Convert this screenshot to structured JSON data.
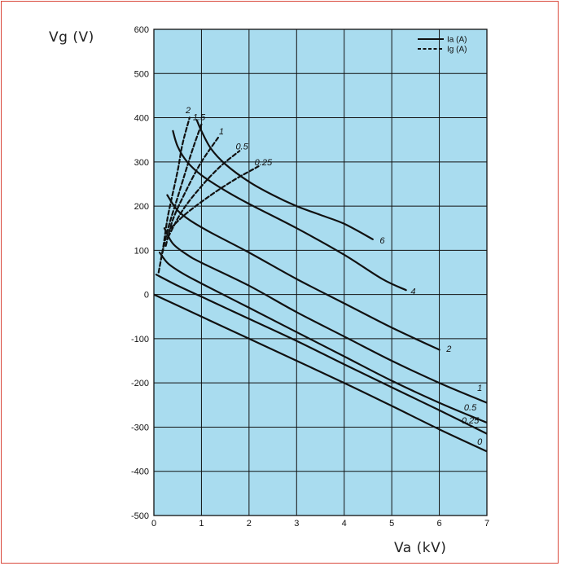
{
  "colors": {
    "frame": "#d9473a",
    "plot_background": "#a9dcef",
    "grid": "#111111",
    "curve": "#111111"
  },
  "chart_data": {
    "type": "line",
    "title": "",
    "xlabel": "Va (kV)",
    "ylabel": "Vg (V)",
    "xlim": [
      0,
      7
    ],
    "ylim": [
      -500,
      600
    ],
    "x_ticks": [
      0,
      1,
      2,
      3,
      4,
      5,
      6,
      7
    ],
    "y_ticks": [
      -500,
      -400,
      -300,
      -200,
      -100,
      0,
      100,
      200,
      300,
      400,
      500,
      600
    ],
    "grid": true,
    "legend": {
      "position": "top-right",
      "entries": [
        {
          "label": "Ia (A)",
          "style": "solid"
        },
        {
          "label": "Ig (A)",
          "style": "dashed"
        }
      ]
    },
    "series": [
      {
        "name": "Ia (A)",
        "label": "0",
        "style": "solid",
        "points": [
          [
            0,
            0
          ],
          [
            1,
            -50
          ],
          [
            2,
            -100
          ],
          [
            3,
            -150
          ],
          [
            4,
            -200
          ],
          [
            5,
            -252
          ],
          [
            6,
            -305
          ],
          [
            7,
            -355
          ]
        ]
      },
      {
        "name": "Ia (A)",
        "label": "0.25",
        "style": "solid",
        "points": [
          [
            0.05,
            45
          ],
          [
            0.5,
            20
          ],
          [
            1,
            -5
          ],
          [
            2,
            -55
          ],
          [
            3,
            -105
          ],
          [
            4,
            -158
          ],
          [
            5,
            -210
          ],
          [
            6,
            -262
          ],
          [
            7,
            -315
          ]
        ]
      },
      {
        "name": "Ia (A)",
        "label": "0.5",
        "style": "solid",
        "points": [
          [
            0.12,
            95
          ],
          [
            0.3,
            70
          ],
          [
            0.6,
            48
          ],
          [
            1,
            25
          ],
          [
            2,
            -30
          ],
          [
            3,
            -85
          ],
          [
            4,
            -140
          ],
          [
            5,
            -195
          ],
          [
            6,
            -245
          ],
          [
            7,
            -290
          ]
        ]
      },
      {
        "name": "Ia (A)",
        "label": "1",
        "style": "solid",
        "points": [
          [
            0.22,
            150
          ],
          [
            0.4,
            115
          ],
          [
            0.7,
            90
          ],
          [
            1,
            72
          ],
          [
            2,
            20
          ],
          [
            3,
            -40
          ],
          [
            4,
            -95
          ],
          [
            5,
            -150
          ],
          [
            6,
            -200
          ],
          [
            7,
            -245
          ]
        ]
      },
      {
        "name": "Ia (A)",
        "label": "2",
        "style": "solid",
        "points": [
          [
            0.28,
            225
          ],
          [
            0.5,
            190
          ],
          [
            0.8,
            165
          ],
          [
            1.2,
            140
          ],
          [
            2,
            95
          ],
          [
            3,
            35
          ],
          [
            4,
            -20
          ],
          [
            5,
            -75
          ],
          [
            6,
            -125
          ]
        ]
      },
      {
        "name": "Ia (A)",
        "label": "4",
        "style": "solid",
        "points": [
          [
            0.4,
            370
          ],
          [
            0.5,
            335
          ],
          [
            0.7,
            300
          ],
          [
            1,
            270
          ],
          [
            1.5,
            235
          ],
          [
            2,
            205
          ],
          [
            3,
            150
          ],
          [
            4,
            90
          ],
          [
            4.8,
            35
          ],
          [
            5.3,
            10
          ]
        ]
      },
      {
        "name": "Ia (A)",
        "label": "6",
        "style": "solid",
        "points": [
          [
            0.9,
            395
          ],
          [
            1,
            370
          ],
          [
            1.2,
            330
          ],
          [
            1.5,
            295
          ],
          [
            2,
            255
          ],
          [
            2.5,
            225
          ],
          [
            3,
            200
          ],
          [
            3.5,
            180
          ],
          [
            4,
            160
          ],
          [
            4.6,
            125
          ]
        ]
      },
      {
        "name": "Ig (A)",
        "label": "2",
        "style": "dashed",
        "points": [
          [
            0.1,
            50
          ],
          [
            0.2,
            110
          ],
          [
            0.3,
            180
          ],
          [
            0.5,
            280
          ],
          [
            0.6,
            340
          ],
          [
            0.75,
            400
          ]
        ]
      },
      {
        "name": "Ig (A)",
        "label": "1.5",
        "style": "dashed",
        "points": [
          [
            0.15,
            80
          ],
          [
            0.3,
            150
          ],
          [
            0.5,
            220
          ],
          [
            0.7,
            290
          ],
          [
            0.85,
            340
          ],
          [
            1,
            385
          ]
        ]
      },
      {
        "name": "Ig (A)",
        "label": "1",
        "style": "dashed",
        "points": [
          [
            0.25,
            110
          ],
          [
            0.4,
            170
          ],
          [
            0.7,
            240
          ],
          [
            1,
            300
          ],
          [
            1.35,
            355
          ]
        ]
      },
      {
        "name": "Ig (A)",
        "label": "0.5",
        "style": "dashed",
        "points": [
          [
            0.3,
            130
          ],
          [
            0.6,
            190
          ],
          [
            1,
            245
          ],
          [
            1.4,
            290
          ],
          [
            1.8,
            325
          ]
        ]
      },
      {
        "name": "Ig (A)",
        "label": "0.25",
        "style": "dashed",
        "points": [
          [
            0.35,
            150
          ],
          [
            0.7,
            185
          ],
          [
            1.2,
            225
          ],
          [
            1.7,
            260
          ],
          [
            2.2,
            290
          ]
        ]
      }
    ],
    "curve_labels": [
      {
        "text": "0",
        "x": 6.85,
        "y": -340
      },
      {
        "text": "0.25",
        "x": 6.65,
        "y": -292
      },
      {
        "text": "0.5",
        "x": 6.65,
        "y": -262
      },
      {
        "text": "1",
        "x": 6.85,
        "y": -218
      },
      {
        "text": "2",
        "x": 6.2,
        "y": -130
      },
      {
        "text": "4",
        "x": 5.45,
        "y": 0
      },
      {
        "text": "6",
        "x": 4.8,
        "y": 115
      },
      {
        "text": "2",
        "x": 0.72,
        "y": 410
      },
      {
        "text": "1.5",
        "x": 0.95,
        "y": 395
      },
      {
        "text": "1",
        "x": 1.42,
        "y": 362
      },
      {
        "text": "0.5",
        "x": 1.85,
        "y": 328
      },
      {
        "text": "0.25",
        "x": 2.3,
        "y": 292
      }
    ]
  }
}
